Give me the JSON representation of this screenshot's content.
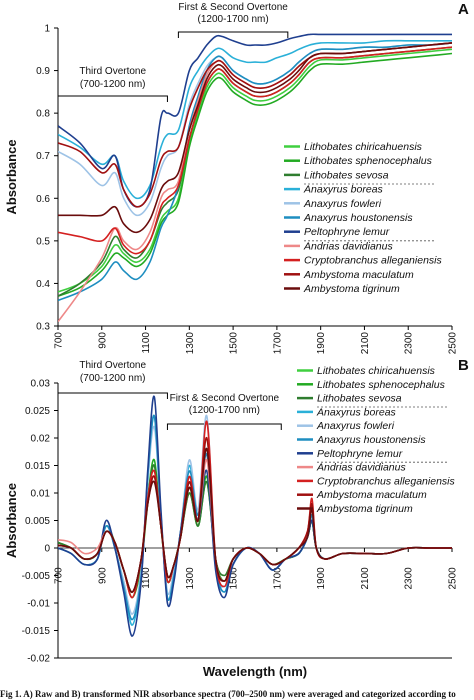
{
  "caption": "Fig 1.  A) Raw and B) transformed NIR absorbance spectra (700–2500 nm) were averaged and categorized according to",
  "species": [
    {
      "name": "Lithobates chiricahuensis",
      "color": "#3fcf3f"
    },
    {
      "name": "Lithobates sphenocephalus",
      "color": "#22aa22"
    },
    {
      "name": "Lithobates sevosa",
      "color": "#2f7d2f"
    },
    {
      "name": "Anaxyrus boreas",
      "color": "#2ab0d8"
    },
    {
      "name": "Anaxyrus fowleri",
      "color": "#9ec3e6"
    },
    {
      "name": "Anaxyrus houstonensis",
      "color": "#1e8ec0"
    },
    {
      "name": "Peltophryne lemur",
      "color": "#1f3f8f"
    },
    {
      "name": "Andrias davidianus",
      "color": "#ee8888"
    },
    {
      "name": "Cryptobranchus alleganiensis",
      "color": "#d42020"
    },
    {
      "name": "Ambystoma maculatum",
      "color": "#a01010"
    },
    {
      "name": "Ambystoma tigrinum",
      "color": "#6a0c0c"
    }
  ],
  "chart_data": [
    {
      "id": "A",
      "type": "line",
      "panel_label": "A",
      "ylabel": "Absorbance",
      "xlabel": "",
      "xlim": [
        700,
        2500
      ],
      "ylim": [
        0.3,
        1.0
      ],
      "xticks": [
        700,
        900,
        1100,
        1300,
        1500,
        1700,
        1900,
        2100,
        2300,
        2500
      ],
      "yticks": [
        0.3,
        0.4,
        0.5,
        0.6,
        0.7,
        0.8,
        0.9,
        1
      ],
      "tick_labels_y": [
        "0.3",
        "0.4",
        "0.5",
        "0.6",
        "0.7",
        "0.8",
        "0.9",
        "1"
      ],
      "annotations": [
        {
          "label": "Third Overtone",
          "sublabel": "(700-1200 nm)",
          "x_range": [
            700,
            1200
          ]
        },
        {
          "label": "First & Second Overtone",
          "sublabel": "(1200-1700 nm)",
          "x_range": [
            1250,
            1750
          ]
        }
      ],
      "legend_position": "right",
      "x": [
        700,
        800,
        900,
        960,
        1000,
        1060,
        1120,
        1170,
        1200,
        1250,
        1300,
        1340,
        1380,
        1420,
        1450,
        1500,
        1560,
        1600,
        1650,
        1700,
        1760,
        1800,
        1850,
        1900,
        2000,
        2100,
        2200,
        2300,
        2400,
        2500
      ],
      "series": [
        {
          "name": "Lithobates chiricahuensis",
          "values": [
            0.38,
            0.4,
            0.44,
            0.49,
            0.47,
            0.45,
            0.48,
            0.55,
            0.57,
            0.6,
            0.73,
            0.8,
            0.86,
            0.89,
            0.89,
            0.86,
            0.84,
            0.83,
            0.83,
            0.84,
            0.86,
            0.88,
            0.91,
            0.925,
            0.925,
            0.93,
            0.935,
            0.94,
            0.945,
            0.95
          ]
        },
        {
          "name": "Lithobates sphenocephalus",
          "values": [
            0.37,
            0.39,
            0.43,
            0.47,
            0.46,
            0.44,
            0.47,
            0.54,
            0.56,
            0.59,
            0.72,
            0.79,
            0.85,
            0.88,
            0.88,
            0.85,
            0.83,
            0.82,
            0.82,
            0.83,
            0.85,
            0.87,
            0.9,
            0.915,
            0.915,
            0.92,
            0.925,
            0.93,
            0.935,
            0.94
          ]
        },
        {
          "name": "Lithobates sevosa",
          "values": [
            0.37,
            0.4,
            0.45,
            0.51,
            0.48,
            0.46,
            0.5,
            0.57,
            0.59,
            0.62,
            0.74,
            0.81,
            0.87,
            0.9,
            0.9,
            0.87,
            0.85,
            0.84,
            0.84,
            0.85,
            0.87,
            0.89,
            0.92,
            0.93,
            0.93,
            0.935,
            0.94,
            0.945,
            0.95,
            0.955
          ]
        },
        {
          "name": "Anaxyrus boreas",
          "values": [
            0.75,
            0.72,
            0.68,
            0.7,
            0.64,
            0.6,
            0.63,
            0.72,
            0.75,
            0.76,
            0.86,
            0.9,
            0.93,
            0.95,
            0.95,
            0.93,
            0.92,
            0.92,
            0.92,
            0.93,
            0.94,
            0.95,
            0.96,
            0.965,
            0.965,
            0.965,
            0.97,
            0.97,
            0.97,
            0.97
          ]
        },
        {
          "name": "Anaxyrus fowleri",
          "values": [
            0.71,
            0.68,
            0.63,
            0.66,
            0.6,
            0.56,
            0.59,
            0.67,
            0.7,
            0.72,
            0.82,
            0.87,
            0.91,
            0.93,
            0.93,
            0.9,
            0.88,
            0.87,
            0.87,
            0.88,
            0.9,
            0.92,
            0.94,
            0.95,
            0.95,
            0.955,
            0.955,
            0.96,
            0.96,
            0.965
          ]
        },
        {
          "name": "Anaxyrus houstonensis",
          "values": [
            0.36,
            0.38,
            0.41,
            0.45,
            0.43,
            0.41,
            0.45,
            0.53,
            0.56,
            0.63,
            0.77,
            0.84,
            0.9,
            0.93,
            0.93,
            0.9,
            0.88,
            0.87,
            0.87,
            0.88,
            0.9,
            0.92,
            0.94,
            0.95,
            0.95,
            0.955,
            0.955,
            0.96,
            0.96,
            0.965
          ]
        },
        {
          "name": "Peltophryne lemur",
          "values": [
            0.77,
            0.73,
            0.67,
            0.7,
            0.62,
            0.58,
            0.62,
            0.79,
            0.8,
            0.8,
            0.9,
            0.93,
            0.96,
            0.98,
            0.98,
            0.97,
            0.96,
            0.96,
            0.96,
            0.965,
            0.975,
            0.98,
            0.985,
            0.985,
            0.985,
            0.985,
            0.985,
            0.985,
            0.985,
            0.985
          ]
        },
        {
          "name": "Andrias davidianus",
          "values": [
            0.31,
            0.38,
            0.46,
            0.53,
            0.5,
            0.48,
            0.52,
            0.6,
            0.62,
            0.64,
            0.76,
            0.83,
            0.89,
            0.92,
            0.92,
            0.89,
            0.87,
            0.86,
            0.86,
            0.87,
            0.89,
            0.91,
            0.93,
            0.94,
            0.94,
            0.945,
            0.95,
            0.955,
            0.96,
            0.965
          ]
        },
        {
          "name": "Cryptobranchus alleganiensis",
          "values": [
            0.52,
            0.51,
            0.5,
            0.53,
            0.49,
            0.47,
            0.5,
            0.58,
            0.6,
            0.63,
            0.74,
            0.81,
            0.87,
            0.9,
            0.9,
            0.87,
            0.85,
            0.84,
            0.84,
            0.85,
            0.87,
            0.89,
            0.92,
            0.93,
            0.93,
            0.935,
            0.94,
            0.945,
            0.95,
            0.955
          ]
        },
        {
          "name": "Ambystoma maculatum",
          "values": [
            0.73,
            0.71,
            0.66,
            0.68,
            0.62,
            0.58,
            0.61,
            0.69,
            0.71,
            0.72,
            0.81,
            0.86,
            0.9,
            0.92,
            0.92,
            0.89,
            0.87,
            0.86,
            0.86,
            0.87,
            0.89,
            0.91,
            0.93,
            0.94,
            0.94,
            0.945,
            0.95,
            0.955,
            0.96,
            0.965
          ]
        },
        {
          "name": "Ambystoma tigrinum",
          "values": [
            0.56,
            0.56,
            0.56,
            0.58,
            0.54,
            0.52,
            0.55,
            0.62,
            0.64,
            0.66,
            0.76,
            0.82,
            0.88,
            0.91,
            0.91,
            0.88,
            0.86,
            0.85,
            0.85,
            0.86,
            0.88,
            0.9,
            0.93,
            0.94,
            0.94,
            0.945,
            0.95,
            0.955,
            0.96,
            0.965
          ]
        }
      ]
    },
    {
      "id": "B",
      "type": "line",
      "panel_label": "B",
      "ylabel": "Absorbance",
      "xlabel": "Wavelength (nm)",
      "xlim": [
        700,
        2500
      ],
      "ylim": [
        -0.02,
        0.03
      ],
      "xticks": [
        700,
        900,
        1100,
        1300,
        1500,
        1700,
        1900,
        2100,
        2300,
        2500
      ],
      "yticks": [
        -0.02,
        -0.015,
        -0.01,
        -0.005,
        0,
        0.005,
        0.01,
        0.015,
        0.02,
        0.025,
        0.03
      ],
      "tick_labels_y": [
        "-0.02",
        "-0.015",
        "-0.01",
        "-0.005",
        "0",
        "0.005",
        "0.01",
        "0.015",
        "0.02",
        "0.025",
        "0.03"
      ],
      "annotations": [
        {
          "label": "Third Overtone",
          "sublabel": "(700-1200 nm)",
          "x_range": [
            700,
            1200
          ]
        },
        {
          "label": "First & Second Overtone",
          "sublabel": "(1200-1700 nm)",
          "x_range": [
            1200,
            1720
          ]
        }
      ],
      "legend_position": "top-right",
      "x": [
        700,
        760,
        820,
        880,
        920,
        960,
        1000,
        1040,
        1080,
        1110,
        1140,
        1170,
        1200,
        1230,
        1260,
        1300,
        1340,
        1380,
        1420,
        1460,
        1500,
        1560,
        1620,
        1680,
        1740,
        1800,
        1840,
        1860,
        1880,
        1920,
        2000,
        2100,
        2200,
        2300,
        2400,
        2500
      ],
      "series": [
        {
          "name": "Lithobates chiricahuensis",
          "values": [
            0.001,
            0.0,
            -0.002,
            -0.001,
            0.003,
            0.001,
            -0.004,
            -0.008,
            -0.003,
            0.008,
            0.015,
            0.004,
            -0.006,
            -0.003,
            0.002,
            0.01,
            0.004,
            0.012,
            -0.002,
            -0.006,
            -0.002,
            0.0,
            -0.001,
            -0.003,
            -0.002,
            -0.001,
            0.002,
            0.005,
            0.0,
            -0.002,
            -0.001,
            -0.001,
            -0.001,
            0.0,
            0.0,
            0.0
          ]
        },
        {
          "name": "Lithobates sphenocephalus",
          "values": [
            0.001,
            0.0,
            -0.002,
            -0.001,
            0.003,
            0.001,
            -0.004,
            -0.009,
            -0.003,
            0.009,
            0.016,
            0.004,
            -0.006,
            -0.003,
            0.002,
            0.011,
            0.004,
            0.013,
            -0.002,
            -0.006,
            -0.002,
            0.0,
            -0.001,
            -0.003,
            -0.002,
            -0.001,
            0.002,
            0.005,
            0.0,
            -0.002,
            -0.001,
            -0.001,
            -0.001,
            0.0,
            0.0,
            0.0
          ]
        },
        {
          "name": "Lithobates sevosa",
          "values": [
            0.001,
            0.0,
            -0.002,
            -0.001,
            0.004,
            0.001,
            -0.004,
            -0.008,
            -0.002,
            0.009,
            0.015,
            0.004,
            -0.005,
            -0.003,
            0.002,
            0.01,
            0.004,
            0.012,
            -0.002,
            -0.005,
            -0.002,
            0.0,
            -0.001,
            -0.003,
            -0.002,
            -0.001,
            0.002,
            0.005,
            0.0,
            -0.002,
            -0.001,
            -0.001,
            -0.001,
            0.0,
            0.0,
            0.0
          ]
        },
        {
          "name": "Anaxyrus boreas",
          "values": [
            0.0,
            -0.001,
            -0.003,
            -0.002,
            0.004,
            0.0,
            -0.007,
            -0.014,
            -0.005,
            0.012,
            0.024,
            0.006,
            -0.009,
            -0.005,
            0.003,
            0.015,
            0.006,
            0.018,
            -0.003,
            -0.008,
            -0.003,
            0.0,
            -0.001,
            -0.004,
            -0.002,
            -0.001,
            0.002,
            0.006,
            0.0,
            -0.002,
            -0.001,
            -0.001,
            -0.001,
            0.0,
            0.0,
            0.0
          ]
        },
        {
          "name": "Anaxyrus fowleri",
          "values": [
            0.0,
            -0.001,
            -0.003,
            -0.002,
            0.004,
            0.0,
            -0.006,
            -0.012,
            -0.004,
            0.012,
            0.022,
            0.006,
            -0.008,
            -0.004,
            0.003,
            0.016,
            0.007,
            0.024,
            -0.003,
            -0.007,
            -0.003,
            0.0,
            -0.001,
            -0.004,
            -0.002,
            -0.001,
            0.002,
            0.006,
            0.0,
            -0.002,
            -0.001,
            -0.001,
            -0.001,
            0.0,
            0.0,
            0.0
          ]
        },
        {
          "name": "Anaxyrus houstonensis",
          "values": [
            0.0,
            -0.001,
            -0.003,
            -0.002,
            0.004,
            0.0,
            -0.007,
            -0.013,
            -0.005,
            0.013,
            0.024,
            0.006,
            -0.009,
            -0.005,
            0.003,
            0.014,
            0.006,
            0.017,
            -0.003,
            -0.008,
            -0.003,
            0.0,
            -0.001,
            -0.004,
            -0.002,
            -0.001,
            0.002,
            0.006,
            0.0,
            -0.002,
            -0.001,
            -0.001,
            -0.001,
            0.0,
            0.0,
            0.0
          ]
        },
        {
          "name": "Peltophryne lemur",
          "values": [
            0.0,
            -0.001,
            -0.003,
            -0.002,
            0.005,
            0.0,
            -0.008,
            -0.016,
            -0.006,
            0.014,
            0.0275,
            0.007,
            -0.01,
            -0.006,
            0.003,
            0.012,
            0.005,
            0.014,
            -0.004,
            -0.009,
            -0.003,
            0.0,
            -0.001,
            -0.004,
            -0.002,
            -0.001,
            0.002,
            0.005,
            0.0,
            -0.002,
            -0.001,
            -0.001,
            -0.001,
            0.0,
            0.0,
            0.0
          ]
        },
        {
          "name": "Andrias davidianus",
          "values": [
            0.0015,
            0.001,
            -0.001,
            0.0,
            0.003,
            0.001,
            -0.004,
            -0.008,
            -0.002,
            0.008,
            0.013,
            0.004,
            -0.005,
            -0.003,
            0.002,
            0.011,
            0.005,
            0.016,
            -0.002,
            -0.006,
            -0.002,
            0.0,
            -0.001,
            -0.003,
            -0.002,
            0.0,
            0.003,
            0.008,
            0.0,
            -0.002,
            -0.001,
            -0.001,
            -0.001,
            0.0,
            0.0,
            0.0
          ]
        },
        {
          "name": "Cryptobranchus alleganiensis",
          "values": [
            0.0005,
            0.0,
            -0.002,
            -0.001,
            0.003,
            0.001,
            -0.004,
            -0.009,
            -0.002,
            0.009,
            0.014,
            0.004,
            -0.006,
            -0.003,
            0.002,
            0.013,
            0.005,
            0.023,
            -0.002,
            -0.007,
            -0.002,
            0.0,
            -0.001,
            -0.003,
            -0.002,
            0.0,
            0.003,
            0.009,
            0.0,
            -0.002,
            -0.001,
            -0.001,
            -0.001,
            0.0,
            0.0,
            0.0
          ]
        },
        {
          "name": "Ambystoma maculatum",
          "values": [
            0.0005,
            0.0,
            -0.002,
            -0.001,
            0.003,
            0.001,
            -0.004,
            -0.008,
            -0.002,
            0.008,
            0.013,
            0.004,
            -0.005,
            -0.003,
            0.002,
            0.012,
            0.005,
            0.02,
            -0.002,
            -0.006,
            -0.002,
            0.0,
            -0.001,
            -0.003,
            -0.002,
            0.0,
            0.003,
            0.008,
            0.0,
            -0.002,
            -0.001,
            -0.001,
            -0.001,
            0.0,
            0.0,
            0.0
          ]
        },
        {
          "name": "Ambystoma tigrinum",
          "values": [
            0.0005,
            0.0,
            -0.002,
            -0.001,
            0.003,
            0.001,
            -0.004,
            -0.008,
            -0.002,
            0.008,
            0.012,
            0.004,
            -0.005,
            -0.003,
            0.002,
            0.011,
            0.005,
            0.018,
            -0.002,
            -0.006,
            -0.002,
            0.0,
            -0.001,
            -0.003,
            -0.002,
            0.0,
            0.002,
            0.007,
            0.0,
            -0.002,
            -0.001,
            -0.001,
            -0.001,
            0.0,
            0.0,
            0.0
          ]
        }
      ]
    }
  ]
}
